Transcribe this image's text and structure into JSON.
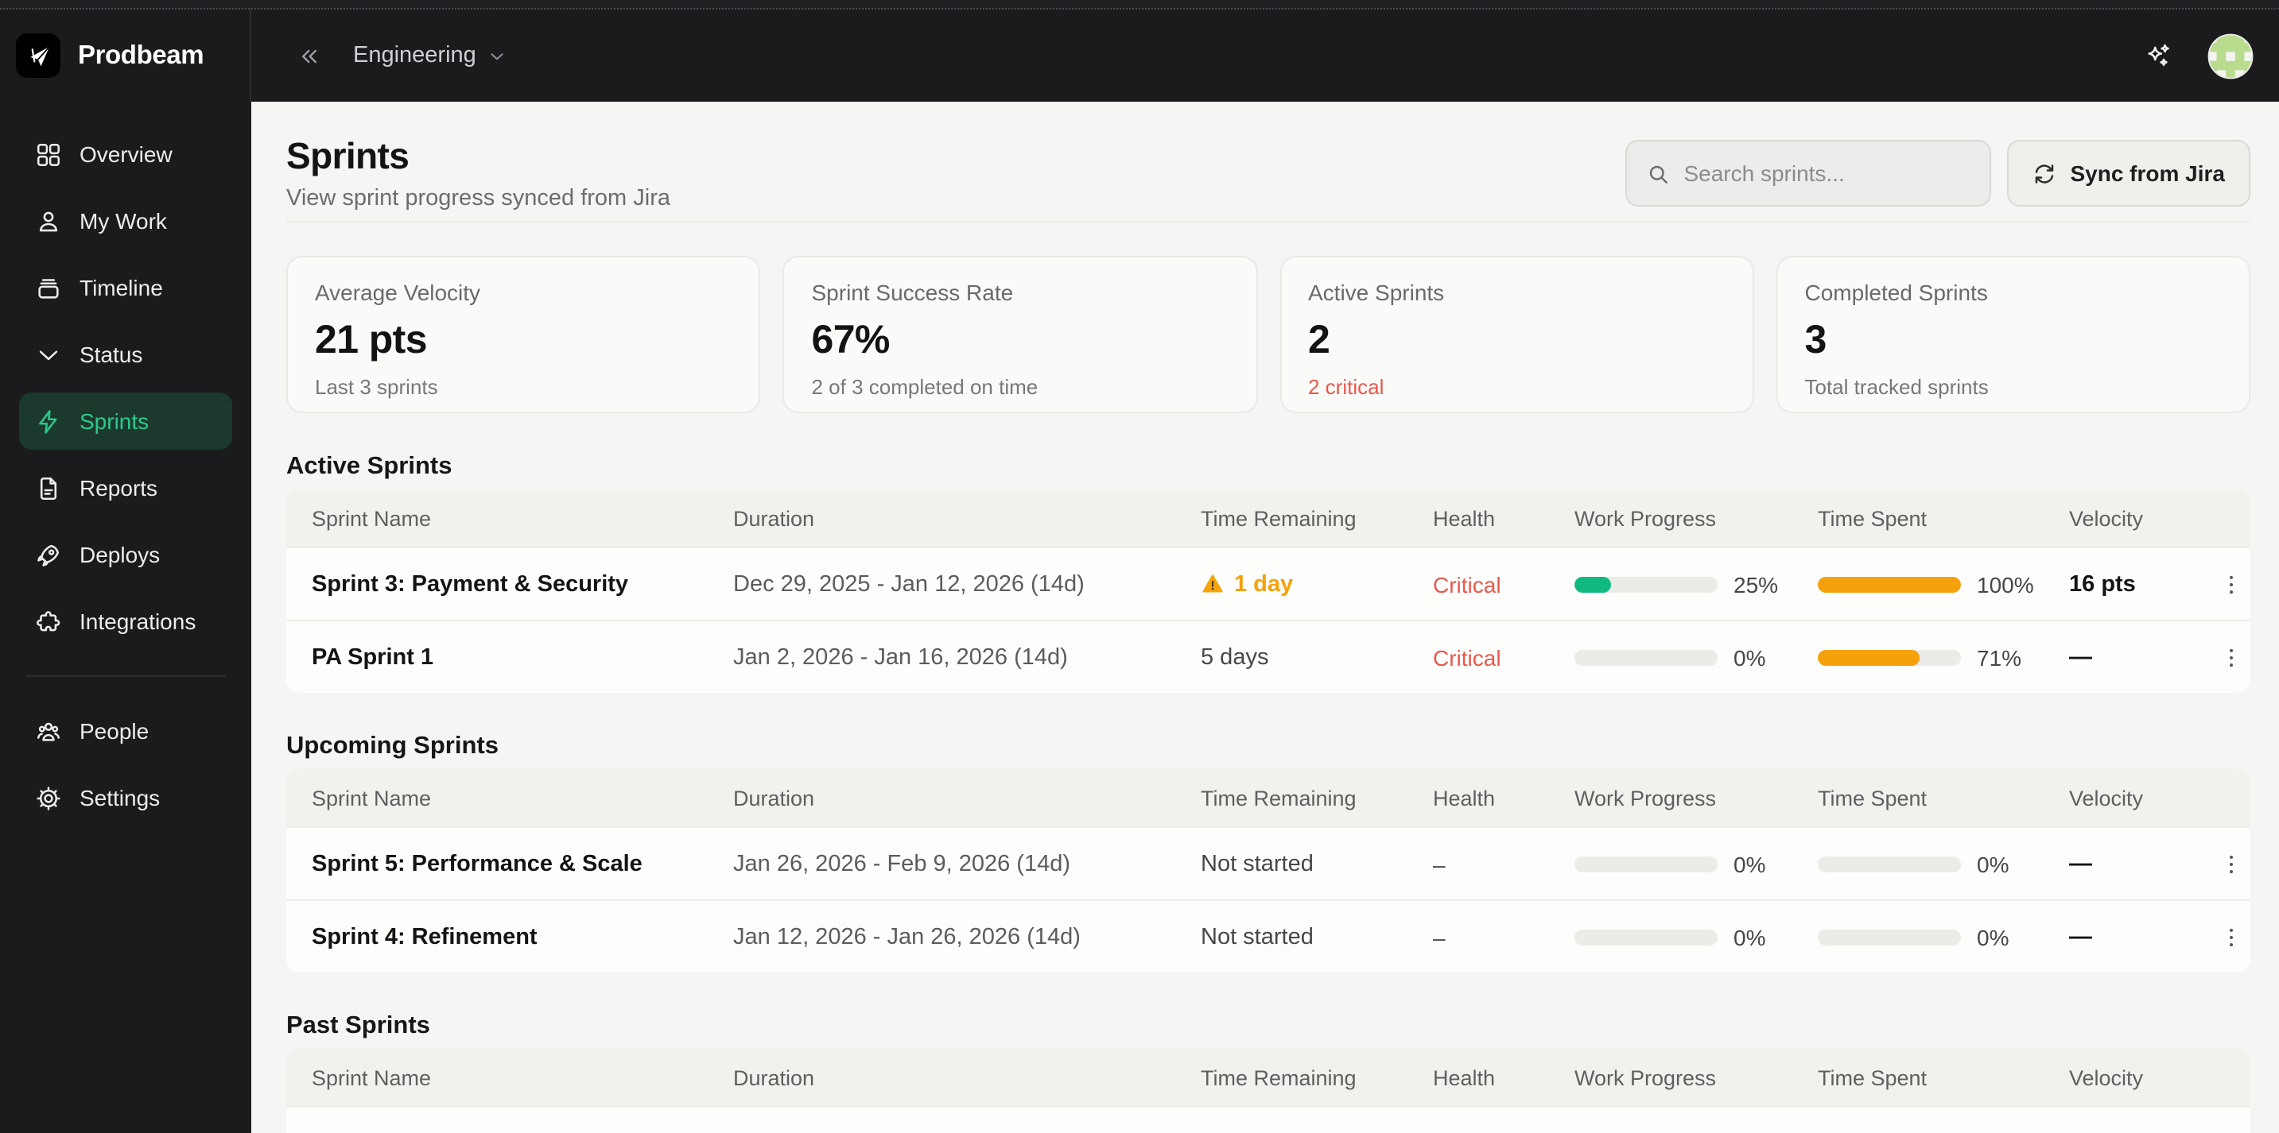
{
  "brand": {
    "name": "Prodbeam"
  },
  "topbar": {
    "breadcrumb": "Engineering"
  },
  "sidebar": {
    "items": [
      {
        "label": "Overview",
        "icon": "grid",
        "active": false
      },
      {
        "label": "My Work",
        "icon": "user",
        "active": false
      },
      {
        "label": "Timeline",
        "icon": "stack",
        "active": false
      },
      {
        "label": "Status",
        "icon": "chevron-down",
        "active": false
      },
      {
        "label": "Sprints",
        "icon": "zap",
        "active": true
      },
      {
        "label": "Reports",
        "icon": "file",
        "active": false
      },
      {
        "label": "Deploys",
        "icon": "rocket",
        "active": false
      },
      {
        "label": "Integrations",
        "icon": "puzzle",
        "active": false
      }
    ],
    "footer_items": [
      {
        "label": "People",
        "icon": "people",
        "active": false
      },
      {
        "label": "Settings",
        "icon": "gear",
        "active": false
      }
    ]
  },
  "page": {
    "title": "Sprints",
    "subtitle": "View sprint progress synced from Jira"
  },
  "search": {
    "placeholder": "Search sprints..."
  },
  "sync_button": {
    "label": "Sync from Jira"
  },
  "stats": [
    {
      "label": "Average Velocity",
      "value": "21 pts",
      "sub": "Last 3 sprints",
      "critical": false
    },
    {
      "label": "Sprint Success Rate",
      "value": "67%",
      "sub": "2 of 3 completed on time",
      "critical": false
    },
    {
      "label": "Active Sprints",
      "value": "2",
      "sub": "2 critical",
      "critical": true
    },
    {
      "label": "Completed Sprints",
      "value": "3",
      "sub": "Total tracked sprints",
      "critical": false
    }
  ],
  "table_columns": [
    "Sprint Name",
    "Duration",
    "Time Remaining",
    "Health",
    "Work Progress",
    "Time Spent",
    "Velocity"
  ],
  "sections": [
    {
      "title": "Active Sprints",
      "rows": [
        {
          "name": "Sprint 3: Payment & Security",
          "duration": "Dec 29, 2025 - Jan 12, 2026 (14d)",
          "time_remaining": "1 day",
          "warning": true,
          "health": "Critical",
          "work_progress": 25,
          "time_spent": 100,
          "velocity": "16 pts"
        },
        {
          "name": "PA Sprint 1",
          "duration": "Jan 2, 2026 - Jan 16, 2026 (14d)",
          "time_remaining": "5 days",
          "warning": false,
          "health": "Critical",
          "work_progress": 0,
          "time_spent": 71,
          "velocity": "—"
        }
      ]
    },
    {
      "title": "Upcoming Sprints",
      "rows": [
        {
          "name": "Sprint 5: Performance & Scale",
          "duration": "Jan 26, 2026 - Feb 9, 2026 (14d)",
          "time_remaining": "Not started",
          "warning": false,
          "health": "–",
          "work_progress": 0,
          "time_spent": 0,
          "velocity": "—"
        },
        {
          "name": "Sprint 4: Refinement",
          "duration": "Jan 12, 2026 - Jan 26, 2026 (14d)",
          "time_remaining": "Not started",
          "warning": false,
          "health": "–",
          "work_progress": 0,
          "time_spent": 0,
          "velocity": "—"
        }
      ]
    },
    {
      "title": "Past Sprints",
      "rows": []
    }
  ],
  "colors": {
    "green": "#10b981",
    "amber": "#f5a10b",
    "critical": "#e9584c"
  }
}
